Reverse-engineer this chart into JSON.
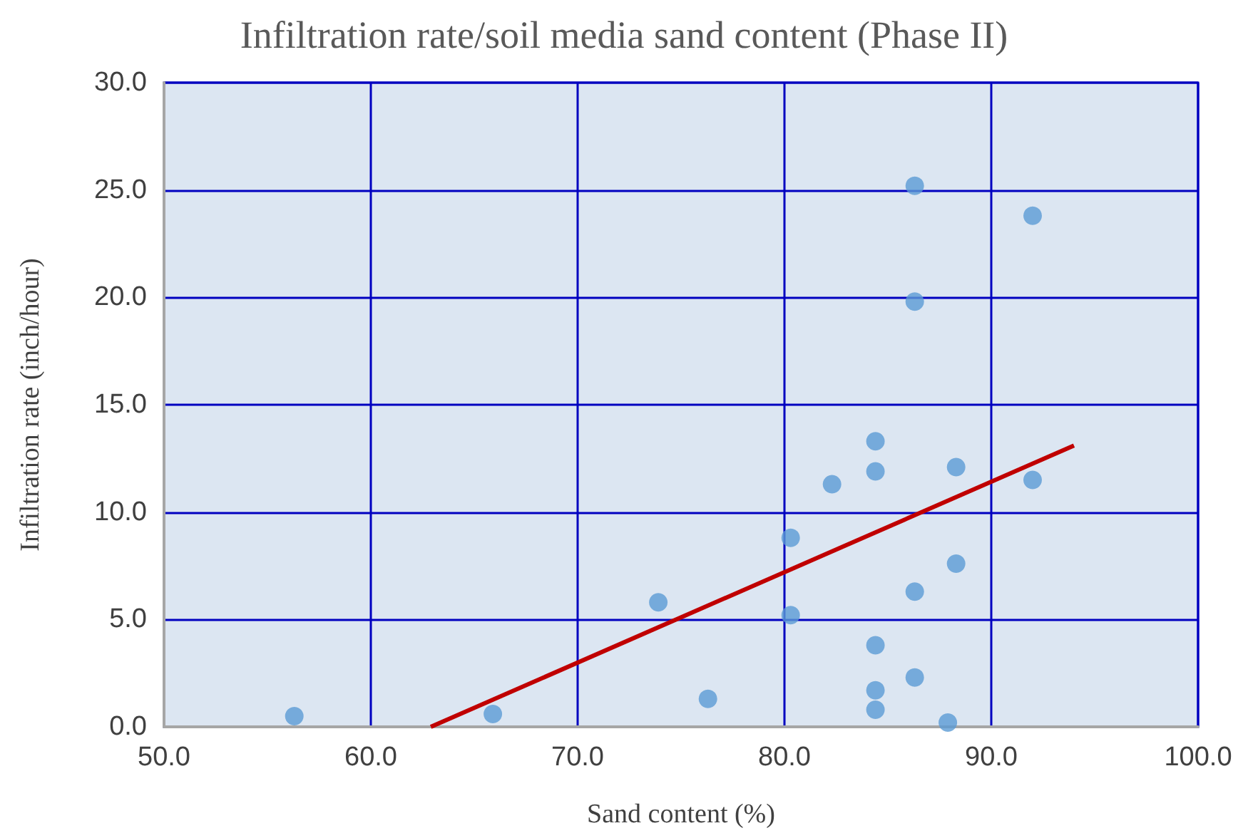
{
  "chart_data": {
    "type": "scatter",
    "title": "Infiltration rate/soil media sand content (Phase II)",
    "xlabel": "Sand content (%)",
    "ylabel": "Infiltration rate (inch/hour)",
    "xlim": [
      50,
      100
    ],
    "ylim": [
      0,
      30
    ],
    "xticks": [
      {
        "value": 50,
        "label": "50.0"
      },
      {
        "value": 60,
        "label": "60.0"
      },
      {
        "value": 70,
        "label": "70.0"
      },
      {
        "value": 80,
        "label": "80.0"
      },
      {
        "value": 90,
        "label": "90.0"
      },
      {
        "value": 100,
        "label": "100.0"
      }
    ],
    "yticks": [
      {
        "value": 0,
        "label": "0.0"
      },
      {
        "value": 5,
        "label": "5.0"
      },
      {
        "value": 10,
        "label": "10.0"
      },
      {
        "value": 15,
        "label": "15.0"
      },
      {
        "value": 20,
        "label": "20.0"
      },
      {
        "value": 25,
        "label": "25.0"
      },
      {
        "value": 30,
        "label": "30.0"
      }
    ],
    "grid": true,
    "marker": "circle",
    "series": [
      {
        "color": "#5b9bd5",
        "x": [
          56.3,
          65.9,
          73.9,
          76.3,
          80.3,
          80.3,
          82.3,
          84.4,
          84.4,
          84.4,
          84.4,
          84.4,
          86.3,
          86.3,
          86.3,
          86.3,
          87.9,
          88.3,
          88.3,
          92.0,
          92.0
        ],
        "values": [
          0.5,
          0.6,
          5.8,
          1.3,
          8.8,
          5.2,
          11.3,
          13.3,
          11.9,
          3.8,
          1.7,
          0.8,
          25.2,
          19.8,
          6.3,
          2.3,
          0.2,
          12.1,
          7.6,
          23.8,
          11.5
        ]
      },
      {
        "type": "line",
        "color": "#c00000",
        "marker": "none",
        "line_style": "solid",
        "x": [
          62.9,
          94.0
        ],
        "values": [
          0,
          13.1
        ]
      }
    ]
  }
}
